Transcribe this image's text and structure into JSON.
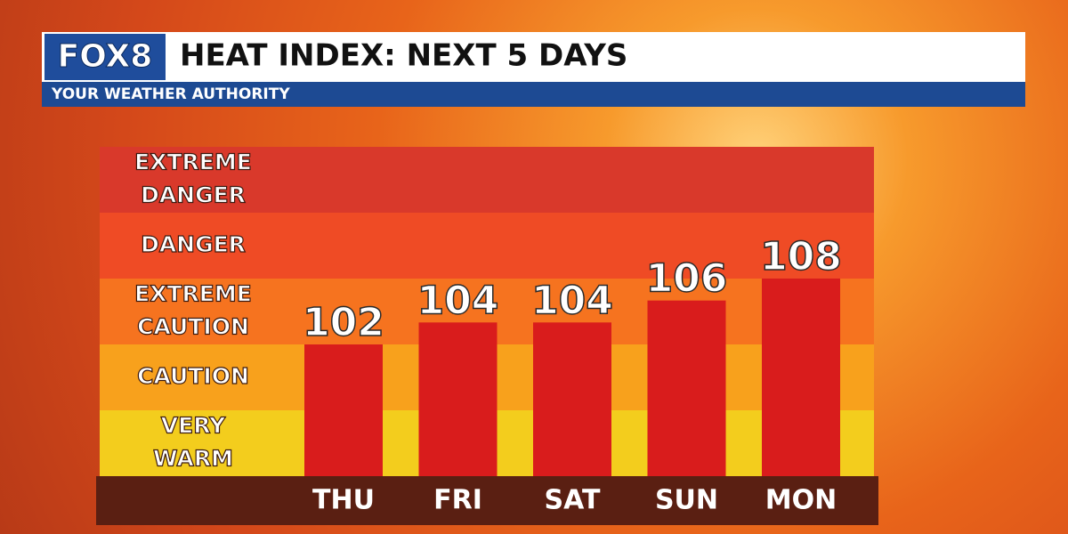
{
  "chart_data": {
    "type": "bar",
    "logo": "FOX8",
    "title": "HEAT INDEX: NEXT 5 DAYS",
    "subtitle": "YOUR WEATHER AUTHORITY",
    "bands": [
      {
        "lines": [
          "EXTREME",
          "DANGER"
        ],
        "color": "#d9392b"
      },
      {
        "lines": [
          "DANGER"
        ],
        "color": "#ef4b25"
      },
      {
        "lines": [
          "EXTREME",
          "CAUTION"
        ],
        "color": "#f6731f"
      },
      {
        "lines": [
          "CAUTION"
        ],
        "color": "#f8a11c"
      },
      {
        "lines": [
          "VERY",
          "WARM"
        ],
        "color": "#f3cd1d"
      }
    ],
    "categories": [
      "THU",
      "FRI",
      "SAT",
      "SUN",
      "MON"
    ],
    "values": [
      102,
      104,
      104,
      106,
      108
    ],
    "color": "#d91c1c"
  }
}
